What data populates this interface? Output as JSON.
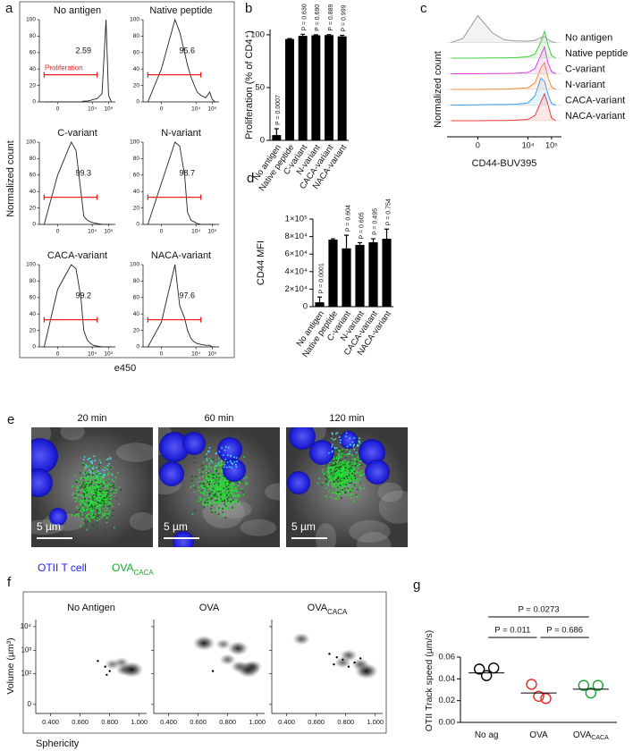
{
  "chart_data": [
    {
      "type": "flow-histogram",
      "panel": "a",
      "ylabel": "Normalized count",
      "xlabel": "e450",
      "xscale": "biexponential",
      "xlim": [
        -1000,
        262144
      ],
      "ylim": [
        0,
        100
      ],
      "yticks": [
        0,
        20,
        40,
        60,
        80,
        100
      ],
      "xticks": [
        {
          "value": 0,
          "label": "0"
        },
        {
          "value": 10000,
          "label": "10⁴"
        },
        {
          "value": 100000,
          "label": "10⁵"
        }
      ],
      "x": [
        -500,
        0,
        500,
        1000,
        2000,
        3000,
        5000,
        8000,
        12000,
        20000,
        40000,
        70000,
        100000,
        150000
      ],
      "gate": {
        "label": "Proliferation",
        "color": "#e8231f",
        "x": [
          -500,
          20000
        ],
        "y": 33
      },
      "panels": [
        {
          "title": "No antigen",
          "percent": 2.59,
          "values": [
            0,
            0,
            0,
            0,
            0,
            1,
            1,
            2,
            3,
            4,
            10,
            100,
            8,
            0
          ]
        },
        {
          "title": "Native peptide",
          "percent": 95.6,
          "values": [
            0,
            40,
            100,
            85,
            60,
            45,
            30,
            20,
            12,
            8,
            5,
            12,
            3,
            0
          ]
        },
        {
          "title": "C-variant",
          "percent": 99.3,
          "values": [
            0,
            60,
            100,
            90,
            40,
            10,
            5,
            3,
            2,
            1,
            0,
            0,
            0,
            0
          ]
        },
        {
          "title": "N-variant",
          "percent": 98.7,
          "values": [
            0,
            50,
            100,
            95,
            60,
            15,
            5,
            3,
            1,
            0,
            0,
            0,
            0,
            0
          ]
        },
        {
          "title": "CACA-variant",
          "percent": 99.2,
          "values": [
            0,
            70,
            100,
            95,
            60,
            20,
            8,
            4,
            2,
            1,
            0,
            0,
            0,
            0
          ]
        },
        {
          "title": "NACA-variant",
          "percent": 97.6,
          "values": [
            0,
            30,
            100,
            50,
            35,
            20,
            10,
            6,
            4,
            3,
            2,
            2,
            0,
            0
          ]
        }
      ]
    },
    {
      "type": "bar",
      "panel": "b",
      "ylabel": "Proliferation (% of CD4⁺)",
      "color": "#000000",
      "categories": [
        "No antigen",
        "Native peptide",
        "C-variant",
        "N-variant",
        "CACA-variant",
        "NACA-variant"
      ],
      "values": [
        5,
        96,
        99,
        99.5,
        99.7,
        98.5
      ],
      "errors": [
        6,
        0.5,
        1.5,
        0.5,
        0.5,
        1
      ],
      "annotations": [
        "P = 0.0007",
        null,
        "P = 0.630",
        "P = 0.690",
        "P = 0.889",
        "P = 0.999"
      ],
      "ylim": [
        0,
        105
      ],
      "yticks": [
        0,
        50,
        100
      ]
    },
    {
      "type": "ridgeline",
      "panel": "c",
      "ylabel": "Normalized count",
      "xlabel": "CD44-BUV395",
      "xscale": "biexponential",
      "xlim": [
        -1500,
        262144
      ],
      "ylim": [
        0,
        100
      ],
      "xticks": [
        {
          "value": 0,
          "label": "0"
        },
        {
          "value": 10000,
          "label": "10⁴"
        },
        {
          "value": 100000,
          "label": "10⁵"
        }
      ],
      "x": [
        -1000,
        -300,
        0,
        300,
        1000,
        3000,
        10000,
        20000,
        35000,
        50000,
        70000,
        100000,
        150000
      ],
      "series": [
        {
          "name": "No antigen",
          "color": "#9a9a9a",
          "values": [
            0,
            15,
            100,
            35,
            10,
            6,
            5,
            8,
            18,
            22,
            12,
            3,
            0
          ]
        },
        {
          "name": "Native peptide",
          "color": "#3fd13f",
          "values": [
            0,
            0,
            0,
            1,
            1,
            2,
            5,
            15,
            60,
            100,
            50,
            10,
            0
          ]
        },
        {
          "name": "C-variant",
          "color": "#e040e0",
          "values": [
            0,
            0,
            0,
            1,
            1,
            2,
            5,
            20,
            70,
            100,
            40,
            8,
            0
          ]
        },
        {
          "name": "N-variant",
          "color": "#f0903a",
          "values": [
            0,
            0,
            0,
            1,
            1,
            3,
            6,
            25,
            80,
            100,
            45,
            8,
            0
          ]
        },
        {
          "name": "CACA-variant",
          "color": "#3a9ef0",
          "values": [
            0,
            0,
            1,
            2,
            2,
            3,
            8,
            35,
            100,
            90,
            40,
            6,
            0
          ]
        },
        {
          "name": "NACA-variant",
          "color": "#f03a3a",
          "values": [
            0,
            0,
            0,
            1,
            1,
            2,
            5,
            20,
            70,
            100,
            60,
            10,
            0
          ]
        }
      ]
    },
    {
      "type": "bar",
      "panel": "d",
      "ylabel": "CD44 MFI",
      "color": "#000000",
      "categories": [
        "No antigen",
        "Native peptide",
        "C-variant",
        "N-variant",
        "CACA-variant",
        "NACA-variant"
      ],
      "values": [
        5000,
        76500,
        66500,
        70500,
        73500,
        77500
      ],
      "errors": [
        6000,
        1000,
        15000,
        2500,
        4000,
        11000
      ],
      "annotations": [
        "P = 0.0001",
        null,
        "P = 0.604",
        "P = 0.605",
        "P = 0.495",
        "P = 0.754"
      ],
      "ylim": [
        0,
        100000
      ],
      "yticks": [
        0,
        {
          "value": 20000,
          "label": "2×10⁴"
        },
        {
          "value": 40000,
          "label": "4×10⁴"
        },
        {
          "value": 60000,
          "label": "6×10⁴"
        },
        {
          "value": 80000,
          "label": "8×10⁴"
        },
        {
          "value": 100000,
          "label": "1×10⁵"
        }
      ]
    },
    {
      "type": "density",
      "panel": "f",
      "xlabel": "Sphericity",
      "ylabel": "Volume (µm³)",
      "xlim": [
        0.3,
        1.05
      ],
      "xticks": [
        {
          "value": 0.4,
          "label": "0.400"
        },
        {
          "value": 0.6,
          "label": "0.600"
        },
        {
          "value": 0.8,
          "label": "0.800"
        },
        {
          "value": 1.0,
          "label": "1.000"
        }
      ],
      "yscale": "biexponential",
      "ylim": [
        -10,
        20000
      ],
      "yticks": [
        {
          "value": 0,
          "label": "0"
        },
        {
          "value": 100,
          "label": "10²"
        },
        {
          "value": 1000,
          "label": "10³"
        },
        {
          "value": 10000,
          "label": "10⁴"
        }
      ],
      "panels": [
        {
          "title": "No Antigen",
          "blobs": {
            "x": [
              0.82,
              0.9,
              0.95,
              0.88
            ],
            "y": [
              250,
              150,
              150,
              300
            ],
            "values": [
              0.3,
              0.5,
              1.0,
              0.3
            ]
          },
          "dots": {
            "x": [
              0.72,
              0.77,
              0.8,
              0.78
            ],
            "y": [
              350,
              200,
              130,
              90
            ]
          }
        },
        {
          "title": "OVA",
          "blobs": {
            "x": [
              0.64,
              0.77,
              0.87,
              0.8,
              0.88,
              0.94,
              0.97
            ],
            "y": [
              2000,
              1800,
              1200,
              400,
              200,
              150,
              200
            ],
            "values": [
              0.9,
              0.3,
              0.8,
              0.4,
              0.5,
              1.0,
              0.6
            ]
          },
          "dots": {
            "x": [
              0.7
            ],
            "y": [
              130
            ]
          }
        },
        {
          "title": "OVA",
          "subscript": "CACA",
          "blobs": {
            "x": [
              0.5,
              0.82,
              0.9,
              0.94,
              0.78
            ],
            "y": [
              3000,
              600,
              250,
              130,
              300
            ],
            "values": [
              0.5,
              0.5,
              0.5,
              1.0,
              0.4
            ]
          },
          "dots": {
            "x": [
              0.69,
              0.74,
              0.78,
              0.82,
              0.86,
              0.9,
              0.72
            ],
            "y": [
              700,
              500,
              400,
              200,
              300,
              450,
              250
            ]
          }
        }
      ]
    },
    {
      "type": "dot",
      "panel": "g",
      "ylabel": "OTII Track speed (µm/s)",
      "categories": [
        "No ag",
        "OVA",
        "OVA"
      ],
      "subscripts": [
        null,
        null,
        "CACA"
      ],
      "series": [
        {
          "color": "#000000",
          "values": [
            0.049,
            0.05,
            0.043
          ]
        },
        {
          "color": "#e8231f",
          "values": [
            0.035,
            0.022,
            0.024
          ]
        },
        {
          "color": "#16a832",
          "values": [
            0.034,
            0.034,
            0.027
          ]
        }
      ],
      "means": [
        0.0455,
        0.027,
        0.0305
      ],
      "comparisons": [
        "P = 0.011",
        "P = 0.686",
        "P = 0.0273"
      ],
      "ylim": [
        0,
        0.06
      ],
      "yticks": [
        {
          "value": 0,
          "label": "0.00"
        },
        {
          "value": 0.02,
          "label": "0.02"
        },
        {
          "value": 0.04,
          "label": "0.04"
        },
        {
          "value": 0.06,
          "label": "0.06"
        }
      ]
    }
  ],
  "figure_e": {
    "panel": "e",
    "frames": [
      {
        "title": "20 min",
        "scale_bar": "5 µm"
      },
      {
        "title": "60 min",
        "scale_bar": "5 µm"
      },
      {
        "title": "120 min",
        "scale_bar": "5 µm"
      }
    ],
    "legend": [
      {
        "text": "OTII T cell",
        "color": "#2020f0"
      },
      {
        "text": "OVA",
        "subscript": "CACA",
        "color": "#16a832"
      }
    ]
  }
}
